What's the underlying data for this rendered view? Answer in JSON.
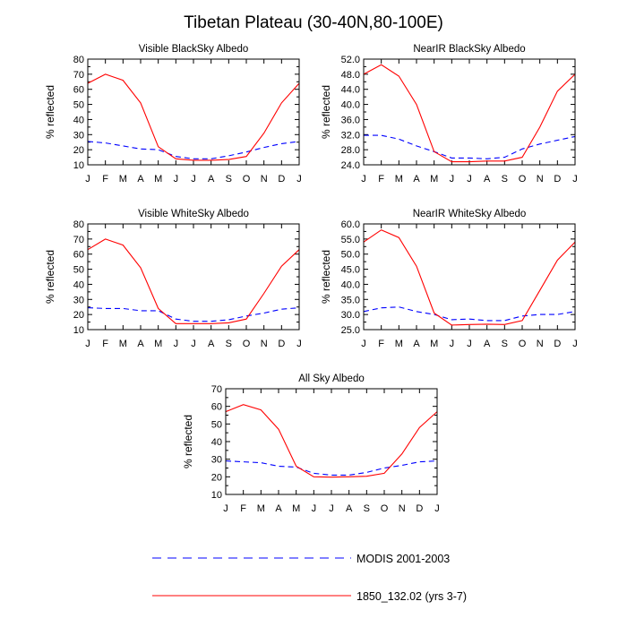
{
  "title": "Tibetan Plateau (30-40N,80-100E)",
  "legend": {
    "placement": "bottom-center",
    "entries": [
      {
        "name": "MODIS 2001-2003",
        "color": "#0000ff",
        "dash": "dashed"
      },
      {
        "name": "1850_132.02 (yrs 3-7)",
        "color": "#ff0000",
        "dash": "solid"
      }
    ]
  },
  "chart_data": [
    {
      "type": "line",
      "title": "Visible BlackSky Albedo",
      "ylabel": "% reflected",
      "ylim": [
        10,
        80
      ],
      "yticks": [
        "10",
        "20",
        "30",
        "40",
        "50",
        "60",
        "70",
        "80"
      ],
      "categories": [
        "J",
        "F",
        "M",
        "A",
        "M",
        "J",
        "J",
        "A",
        "S",
        "O",
        "N",
        "D",
        "J"
      ],
      "series": [
        {
          "name": "MODIS 2001-2003",
          "values": [
            25.5,
            24.5,
            22.5,
            20.5,
            20.0,
            15.5,
            14.0,
            14.0,
            16.0,
            18.5,
            21.5,
            24.0,
            25.5
          ]
        },
        {
          "name": "1850_132.02 (yrs 3-7)",
          "values": [
            64,
            70,
            66,
            51,
            22,
            14,
            13,
            13,
            13.5,
            15.5,
            31,
            51,
            64
          ]
        }
      ]
    },
    {
      "type": "line",
      "title": "NearIR BlackSky Albedo",
      "ylabel": "% reflected",
      "ylim": [
        24,
        52
      ],
      "yticks": [
        "24.0",
        "28.0",
        "32.0",
        "36.0",
        "40.0",
        "44.0",
        "48.0",
        "52.0"
      ],
      "categories": [
        "J",
        "F",
        "M",
        "A",
        "M",
        "J",
        "J",
        "A",
        "S",
        "O",
        "N",
        "D",
        "J"
      ],
      "series": [
        {
          "name": "MODIS 2001-2003",
          "values": [
            31.8,
            31.8,
            30.8,
            29.0,
            27.5,
            25.8,
            25.8,
            25.6,
            26.0,
            28.2,
            29.5,
            30.5,
            31.5
          ]
        },
        {
          "name": "1850_132.02 (yrs 3-7)",
          "values": [
            48.0,
            50.5,
            47.5,
            40.0,
            27.5,
            24.8,
            24.8,
            25.0,
            25.0,
            26.0,
            34.0,
            43.5,
            48.0
          ]
        }
      ]
    },
    {
      "type": "line",
      "title": "Visible WhiteSky Albedo",
      "ylabel": "% reflected",
      "ylim": [
        10,
        80
      ],
      "yticks": [
        "10",
        "20",
        "30",
        "40",
        "50",
        "60",
        "70",
        "80"
      ],
      "categories": [
        "J",
        "F",
        "M",
        "A",
        "M",
        "J",
        "J",
        "A",
        "S",
        "O",
        "N",
        "D",
        "J"
      ],
      "series": [
        {
          "name": "MODIS 2001-2003",
          "values": [
            24.5,
            24.0,
            24.0,
            22.5,
            22.5,
            17.0,
            15.5,
            15.5,
            16.5,
            19.0,
            21.0,
            23.5,
            24.5
          ]
        },
        {
          "name": "1850_132.02 (yrs 3-7)",
          "values": [
            63,
            70,
            66,
            51,
            24,
            14,
            14,
            14,
            14.5,
            17,
            34,
            52,
            63
          ]
        }
      ]
    },
    {
      "type": "line",
      "title": "NearIR WhiteSky Albedo",
      "ylabel": "% reflected",
      "ylim": [
        25,
        60
      ],
      "yticks": [
        "25.0",
        "30.0",
        "35.0",
        "40.0",
        "45.0",
        "50.0",
        "55.0",
        "60.0"
      ],
      "categories": [
        "J",
        "F",
        "M",
        "A",
        "M",
        "J",
        "J",
        "A",
        "S",
        "O",
        "N",
        "D",
        "J"
      ],
      "series": [
        {
          "name": "MODIS 2001-2003",
          "values": [
            31.0,
            32.2,
            32.5,
            31.0,
            30.0,
            28.3,
            28.5,
            28.0,
            28.0,
            29.5,
            30.0,
            30.0,
            31.0
          ]
        },
        {
          "name": "1850_132.02 (yrs 3-7)",
          "values": [
            54.0,
            58.0,
            55.5,
            46.0,
            30.5,
            26.5,
            26.7,
            26.8,
            26.7,
            28.0,
            38.0,
            48.0,
            54.0
          ]
        }
      ]
    },
    {
      "type": "line",
      "title": "All Sky Albedo",
      "ylabel": "% reflected",
      "ylim": [
        10,
        70
      ],
      "yticks": [
        "10",
        "20",
        "30",
        "40",
        "50",
        "60",
        "70"
      ],
      "categories": [
        "J",
        "F",
        "M",
        "A",
        "M",
        "J",
        "J",
        "A",
        "S",
        "O",
        "N",
        "D",
        "J"
      ],
      "series": [
        {
          "name": "MODIS 2001-2003",
          "values": [
            29.0,
            28.5,
            28.0,
            26.0,
            25.5,
            22.0,
            21.0,
            21.0,
            22.5,
            25.0,
            26.5,
            28.5,
            29.0
          ]
        },
        {
          "name": "1850_132.02 (yrs 3-7)",
          "values": [
            57,
            61,
            58,
            47,
            26,
            20,
            19.8,
            20,
            20.3,
            22,
            33,
            48,
            57
          ]
        }
      ]
    }
  ]
}
